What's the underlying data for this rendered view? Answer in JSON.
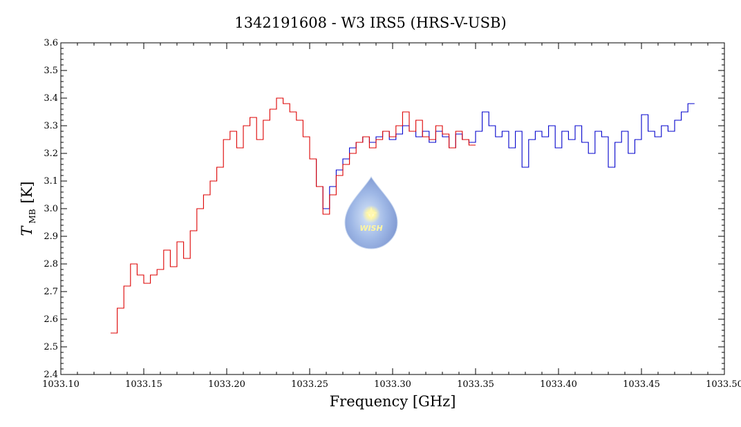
{
  "chart_data": {
    "type": "line",
    "title": "1342191608 - W3 IRS5 (HRS-V-USB)",
    "xlabel": "Frequency [GHz]",
    "ylabel_main": "T",
    "ylabel_sub": "MB",
    "ylabel_unit": "[K]",
    "xlim": [
      1033.1,
      1033.5
    ],
    "ylim": [
      2.4,
      3.6
    ],
    "x_ticks": [
      "1033.10",
      "1033.15",
      "1033.20",
      "1033.25",
      "1033.30",
      "1033.35",
      "1033.40",
      "1033.45",
      "1033.50"
    ],
    "y_ticks": [
      "2.4",
      "2.5",
      "2.6",
      "2.7",
      "2.8",
      "2.9",
      "3.0",
      "3.1",
      "3.2",
      "3.3",
      "3.4",
      "3.5",
      "3.6"
    ],
    "step": "histogram",
    "grid": false,
    "logo": "WISH",
    "series": [
      {
        "color": "#dd0000",
        "x": [
          1033.132,
          1033.136,
          1033.14,
          1033.144,
          1033.148,
          1033.152,
          1033.156,
          1033.16,
          1033.164,
          1033.168,
          1033.172,
          1033.176,
          1033.18,
          1033.184,
          1033.188,
          1033.192,
          1033.196,
          1033.2,
          1033.204,
          1033.208,
          1033.212,
          1033.216,
          1033.22,
          1033.224,
          1033.228,
          1033.232,
          1033.236,
          1033.24,
          1033.244,
          1033.248,
          1033.252,
          1033.256,
          1033.26,
          1033.264,
          1033.268,
          1033.272,
          1033.276,
          1033.28,
          1033.284,
          1033.288,
          1033.292,
          1033.296,
          1033.3,
          1033.304,
          1033.308,
          1033.312,
          1033.316,
          1033.32,
          1033.324,
          1033.328,
          1033.332,
          1033.336,
          1033.34,
          1033.344,
          1033.348
        ],
        "values": [
          2.55,
          2.64,
          2.72,
          2.8,
          2.76,
          2.73,
          2.76,
          2.78,
          2.85,
          2.79,
          2.88,
          2.82,
          2.92,
          3.0,
          3.05,
          3.1,
          3.15,
          3.25,
          3.28,
          3.22,
          3.3,
          3.33,
          3.25,
          3.32,
          3.36,
          3.4,
          3.38,
          3.35,
          3.32,
          3.26,
          3.18,
          3.08,
          2.98,
          3.05,
          3.12,
          3.16,
          3.2,
          3.24,
          3.26,
          3.22,
          3.25,
          3.28,
          3.26,
          3.3,
          3.35,
          3.28,
          3.32,
          3.26,
          3.25,
          3.3,
          3.27,
          3.22,
          3.28,
          3.25,
          3.23
        ]
      },
      {
        "color": "#0000cc",
        "x": [
          1033.252,
          1033.256,
          1033.26,
          1033.264,
          1033.268,
          1033.272,
          1033.276,
          1033.28,
          1033.284,
          1033.288,
          1033.292,
          1033.296,
          1033.3,
          1033.304,
          1033.308,
          1033.312,
          1033.316,
          1033.32,
          1033.324,
          1033.328,
          1033.332,
          1033.336,
          1033.34,
          1033.344,
          1033.348,
          1033.352,
          1033.356,
          1033.36,
          1033.364,
          1033.368,
          1033.372,
          1033.376,
          1033.38,
          1033.384,
          1033.388,
          1033.392,
          1033.396,
          1033.4,
          1033.404,
          1033.408,
          1033.412,
          1033.416,
          1033.42,
          1033.424,
          1033.428,
          1033.432,
          1033.436,
          1033.44,
          1033.444,
          1033.448,
          1033.452,
          1033.456,
          1033.46,
          1033.464,
          1033.468,
          1033.472,
          1033.476,
          1033.48
        ],
        "values": [
          3.18,
          3.08,
          3.0,
          3.08,
          3.14,
          3.18,
          3.22,
          3.24,
          3.26,
          3.24,
          3.26,
          3.28,
          3.25,
          3.27,
          3.3,
          3.28,
          3.26,
          3.28,
          3.24,
          3.28,
          3.26,
          3.22,
          3.27,
          3.25,
          3.24,
          3.28,
          3.35,
          3.3,
          3.26,
          3.28,
          3.22,
          3.28,
          3.15,
          3.25,
          3.28,
          3.26,
          3.3,
          3.22,
          3.28,
          3.25,
          3.3,
          3.24,
          3.2,
          3.28,
          3.26,
          3.15,
          3.24,
          3.28,
          3.2,
          3.25,
          3.34,
          3.28,
          3.26,
          3.3,
          3.28,
          3.32,
          3.35,
          3.38
        ]
      }
    ]
  }
}
